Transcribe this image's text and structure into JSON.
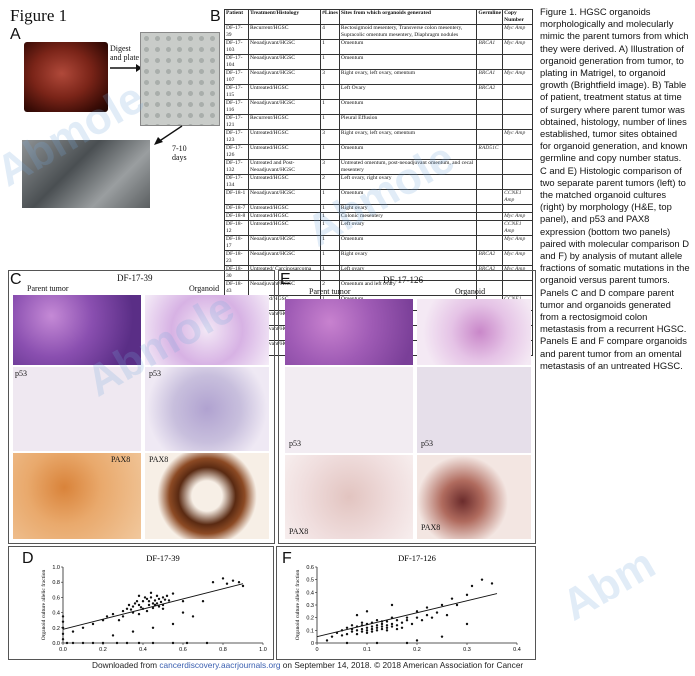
{
  "figure_title": "Figure 1",
  "panel_labels": {
    "a": "A",
    "b": "B",
    "c": "C",
    "d": "D",
    "e": "E",
    "f": "F"
  },
  "panel_a": {
    "step1": "Digest\nand plate",
    "step2": "7-10\ndays"
  },
  "table": {
    "headers": [
      "Patient",
      "Treatment/Histology",
      "#Lines",
      "Sites from which organoids generated",
      "Germline",
      "Copy Number"
    ],
    "rows": [
      [
        "DF-17-39",
        "Recurrent/HGSC",
        "4",
        "Rectosigmoid mesentery, Transverse colon mesentery, Supracolic omentum mesentery, Diaphragm nodules",
        "",
        "Myc Amp"
      ],
      [
        "DF-17-103",
        "Neoadjuvant/HGSC",
        "1",
        "Omentum",
        "BRCA1",
        "Myc Amp"
      ],
      [
        "DF-17-104",
        "Neoadjuvant/HGSC",
        "1",
        "Omentum",
        "",
        ""
      ],
      [
        "DF-17-107",
        "Neoadjuvant/HGSC",
        "3",
        "Right ovary, left ovary, omentum",
        "BRCA1",
        "Myc Amp"
      ],
      [
        "DF-17-115",
        "Untreated/HGSC",
        "1",
        "Left Ovary",
        "BRCA2",
        ""
      ],
      [
        "DF-17-116",
        "Neoadjuvant/HGSC",
        "1",
        "Omentum",
        "",
        ""
      ],
      [
        "DF-17-121",
        "Recurrent/HGSC",
        "1",
        "Pleural Effusion",
        "",
        ""
      ],
      [
        "DF-17-123",
        "Untreated/HGSC",
        "3",
        "Right ovary, left ovary, omentum",
        "",
        "Myc Amp"
      ],
      [
        "DF-17-126",
        "Untreated/HGSC",
        "1",
        "Omentum",
        "RAD51C",
        ""
      ],
      [
        "DF-17-132",
        "Untreated and Post-Neoadjuvant/HGSC",
        "3",
        "Untreated omentum, post-neoadjuvant omentum, and cecal mesentery",
        "",
        ""
      ],
      [
        "DF-17-134",
        "Untreated/HGSC",
        "2",
        "Left ovary, right ovary",
        "",
        ""
      ],
      [
        "DF-18-1",
        "Neoadjuvant/HGSC",
        "1",
        "Omentum",
        "",
        "CCNE1 Amp"
      ],
      [
        "DF-18-7",
        "Untreated/HGSC",
        "1",
        "Right ovary",
        "",
        ""
      ],
      [
        "DF-18-8",
        "Untreated/HGSC",
        "1",
        "Colonic mesentery",
        "",
        "Myc Amp"
      ],
      [
        "DF-18-12",
        "Untreated/HGSC",
        "1",
        "Left ovary",
        "",
        "CCNE1 Amp"
      ],
      [
        "DF-18-17",
        "Neoadjuvant/HGSC",
        "1",
        "Omentum",
        "",
        "Myc Amp"
      ],
      [
        "DF-18-23",
        "Neoadjuvant/HGSC",
        "1",
        "Right ovary",
        "BRCA2",
        "Myc Amp"
      ],
      [
        "DF-18-30",
        "Untreated/ Carcinosarcoma",
        "1",
        "Left ovary",
        "BRCA2",
        "Myc Amp"
      ],
      [
        "DF-18-43",
        "Neoadjuvant/HGSC",
        "2",
        "Omentum and left ovary",
        "",
        ""
      ],
      [
        "DF-18-47",
        "Untreated/HGSC",
        "1",
        "Omentum",
        "",
        "CCNE1 Amp"
      ],
      [
        "DF-18-48",
        "Neoadjuvant/HGSC",
        "1",
        "Omentum",
        "",
        ""
      ],
      [
        "DF-18-50",
        "Neoadjuvant/HGSC",
        "1",
        "Omentum",
        "",
        "CCNE1 Amp"
      ],
      [
        "DF-18-54",
        "Neoadjuvant/HGSC",
        "1",
        "Omentum",
        "",
        ""
      ]
    ]
  },
  "caption": "Figure 1. HGSC organoids morphologically and molecularly mimic the parent tumors from  which they were derived. A) Illustration of organoid generation from tumor, to plating in  Matrigel, to organoid growth (Brightfield image). B) Table of patient, treatment status at time of surgery where parent tumor was obtained, histology, number of lines established, tumor sites obtained for organoid generation, and known germline and copy number status. C and E) Histologic comparison of two separate parent tumors (left) to the matched organoid cultures (right) by morphology (H&E, top panel), and p53 and PAX8 expression (bottom two panels) paired with molecular comparison D and F) by analysis of mutant allele fractions of somatic mutations in the organoid versus parent tumors. Panels C and D compare parent tumor and  organoids generated from a rectosigmoid colon metastasis from a recurrent HGSC. Panels E and  F compare organoids and parent tumor from an omental metastasis of an untreated HGSC.",
  "panel_c": {
    "case": "DF-17-39",
    "left": "Parent tumor",
    "right": "Organoid",
    "p53_left": "p53",
    "p53_right": "p53",
    "pax8_left": "PAX8",
    "pax8_right": "PAX8"
  },
  "panel_e": {
    "case": "DF-17-126",
    "left": "Parent tumor",
    "right": "Organoid",
    "p53_left": "p53",
    "p53_right": "p53",
    "pax8_left": "PAX8",
    "pax8_right": "PAX8"
  },
  "chart_data": [
    {
      "type": "scatter",
      "title": "DF-17-39",
      "ylabel": "Organoid culture allelic fraction",
      "xlim": [
        0,
        1.0
      ],
      "ylim": [
        0,
        1.0
      ],
      "xticks": [
        "0.0",
        "0.2",
        "0.4",
        "0.6",
        "0.8",
        "1.0"
      ],
      "yticks": [
        "0.0",
        "0.2",
        "0.4",
        "0.6",
        "0.8",
        "1.0"
      ],
      "fit_line": [
        [
          0.0,
          0.18
        ],
        [
          0.9,
          0.78
        ]
      ],
      "points": [
        [
          0.02,
          0.0
        ],
        [
          0.05,
          0.0
        ],
        [
          0.1,
          0.0
        ],
        [
          0.15,
          0.0
        ],
        [
          0.2,
          0.0
        ],
        [
          0.27,
          0.0
        ],
        [
          0.32,
          0.0
        ],
        [
          0.38,
          0.0
        ],
        [
          0.45,
          0.0
        ],
        [
          0.55,
          0.0
        ],
        [
          0.62,
          0.0
        ],
        [
          0.72,
          0.0
        ],
        [
          0.0,
          0.05
        ],
        [
          0.0,
          0.12
        ],
        [
          0.0,
          0.2
        ],
        [
          0.0,
          0.28
        ],
        [
          0.0,
          0.35
        ],
        [
          0.05,
          0.15
        ],
        [
          0.1,
          0.2
        ],
        [
          0.15,
          0.25
        ],
        [
          0.2,
          0.3
        ],
        [
          0.22,
          0.35
        ],
        [
          0.25,
          0.38
        ],
        [
          0.28,
          0.3
        ],
        [
          0.3,
          0.42
        ],
        [
          0.32,
          0.45
        ],
        [
          0.35,
          0.48
        ],
        [
          0.36,
          0.52
        ],
        [
          0.38,
          0.5
        ],
        [
          0.4,
          0.55
        ],
        [
          0.4,
          0.45
        ],
        [
          0.42,
          0.58
        ],
        [
          0.43,
          0.5
        ],
        [
          0.44,
          0.6
        ],
        [
          0.45,
          0.52
        ],
        [
          0.46,
          0.56
        ],
        [
          0.47,
          0.62
        ],
        [
          0.48,
          0.58
        ],
        [
          0.49,
          0.54
        ],
        [
          0.5,
          0.6
        ],
        [
          0.5,
          0.5
        ],
        [
          0.52,
          0.62
        ],
        [
          0.53,
          0.56
        ],
        [
          0.55,
          0.65
        ],
        [
          0.38,
          0.38
        ],
        [
          0.42,
          0.42
        ],
        [
          0.45,
          0.46
        ],
        [
          0.35,
          0.4
        ],
        [
          0.3,
          0.35
        ],
        [
          0.48,
          0.48
        ],
        [
          0.5,
          0.45
        ],
        [
          0.43,
          0.55
        ],
        [
          0.41,
          0.6
        ],
        [
          0.37,
          0.55
        ],
        [
          0.33,
          0.5
        ],
        [
          0.6,
          0.4
        ],
        [
          0.65,
          0.35
        ],
        [
          0.7,
          0.55
        ],
        [
          0.75,
          0.8
        ],
        [
          0.8,
          0.85
        ],
        [
          0.82,
          0.78
        ],
        [
          0.85,
          0.82
        ],
        [
          0.88,
          0.8
        ],
        [
          0.9,
          0.75
        ],
        [
          0.25,
          0.1
        ],
        [
          0.35,
          0.15
        ],
        [
          0.45,
          0.2
        ],
        [
          0.55,
          0.25
        ],
        [
          0.6,
          0.55
        ],
        [
          0.38,
          0.62
        ],
        [
          0.44,
          0.66
        ],
        [
          0.46,
          0.5
        ],
        [
          0.51,
          0.57
        ],
        [
          0.47,
          0.52
        ],
        [
          0.39,
          0.47
        ],
        [
          0.34,
          0.44
        ]
      ]
    },
    {
      "type": "scatter",
      "title": "DF-17-126",
      "ylabel": "Organoid culture allelic fraction",
      "xlim": [
        0,
        0.4
      ],
      "ylim": [
        0,
        0.6
      ],
      "xticks": [
        "0",
        "0.1",
        "0.2",
        "0.3",
        "0.4"
      ],
      "yticks": [
        "0",
        "0.1",
        "0.2",
        "0.3",
        "0.4",
        "0.5",
        "0.6"
      ],
      "fit_line": [
        [
          0.0,
          0.05
        ],
        [
          0.36,
          0.39
        ]
      ],
      "points": [
        [
          0.02,
          0.02
        ],
        [
          0.03,
          0.05
        ],
        [
          0.04,
          0.08
        ],
        [
          0.05,
          0.06
        ],
        [
          0.05,
          0.1
        ],
        [
          0.06,
          0.07
        ],
        [
          0.06,
          0.12
        ],
        [
          0.07,
          0.09
        ],
        [
          0.07,
          0.11
        ],
        [
          0.08,
          0.1
        ],
        [
          0.08,
          0.13
        ],
        [
          0.08,
          0.07
        ],
        [
          0.09,
          0.11
        ],
        [
          0.09,
          0.14
        ],
        [
          0.09,
          0.09
        ],
        [
          0.1,
          0.12
        ],
        [
          0.1,
          0.1
        ],
        [
          0.1,
          0.15
        ],
        [
          0.1,
          0.08
        ],
        [
          0.11,
          0.13
        ],
        [
          0.11,
          0.11
        ],
        [
          0.11,
          0.16
        ],
        [
          0.12,
          0.12
        ],
        [
          0.12,
          0.14
        ],
        [
          0.12,
          0.1
        ],
        [
          0.13,
          0.13
        ],
        [
          0.13,
          0.15
        ],
        [
          0.13,
          0.11
        ],
        [
          0.14,
          0.14
        ],
        [
          0.14,
          0.12
        ],
        [
          0.14,
          0.17
        ],
        [
          0.15,
          0.15
        ],
        [
          0.15,
          0.13
        ],
        [
          0.15,
          0.2
        ],
        [
          0.16,
          0.14
        ],
        [
          0.16,
          0.18
        ],
        [
          0.17,
          0.16
        ],
        [
          0.17,
          0.12
        ],
        [
          0.18,
          0.18
        ],
        [
          0.18,
          0.2
        ],
        [
          0.19,
          0.15
        ],
        [
          0.2,
          0.2
        ],
        [
          0.2,
          0.25
        ],
        [
          0.21,
          0.18
        ],
        [
          0.22,
          0.22
        ],
        [
          0.22,
          0.28
        ],
        [
          0.23,
          0.2
        ],
        [
          0.24,
          0.24
        ],
        [
          0.25,
          0.3
        ],
        [
          0.26,
          0.22
        ],
        [
          0.27,
          0.35
        ],
        [
          0.28,
          0.3
        ],
        [
          0.3,
          0.38
        ],
        [
          0.31,
          0.45
        ],
        [
          0.33,
          0.5
        ],
        [
          0.35,
          0.47
        ],
        [
          0.06,
          0.0
        ],
        [
          0.12,
          0.0
        ],
        [
          0.18,
          0.0
        ],
        [
          0.2,
          0.02
        ],
        [
          0.25,
          0.05
        ],
        [
          0.3,
          0.15
        ],
        [
          0.15,
          0.3
        ],
        [
          0.1,
          0.25
        ],
        [
          0.08,
          0.22
        ],
        [
          0.12,
          0.18
        ],
        [
          0.14,
          0.1
        ],
        [
          0.16,
          0.11
        ],
        [
          0.09,
          0.16
        ],
        [
          0.11,
          0.09
        ],
        [
          0.13,
          0.17
        ],
        [
          0.07,
          0.14
        ]
      ]
    }
  ],
  "footer": {
    "prefix": "Downloaded from ",
    "link": "cancerdiscovery.aacrjournals.org",
    "suffix": " on September 14, 2018. © 2018 American Association for Cancer"
  }
}
